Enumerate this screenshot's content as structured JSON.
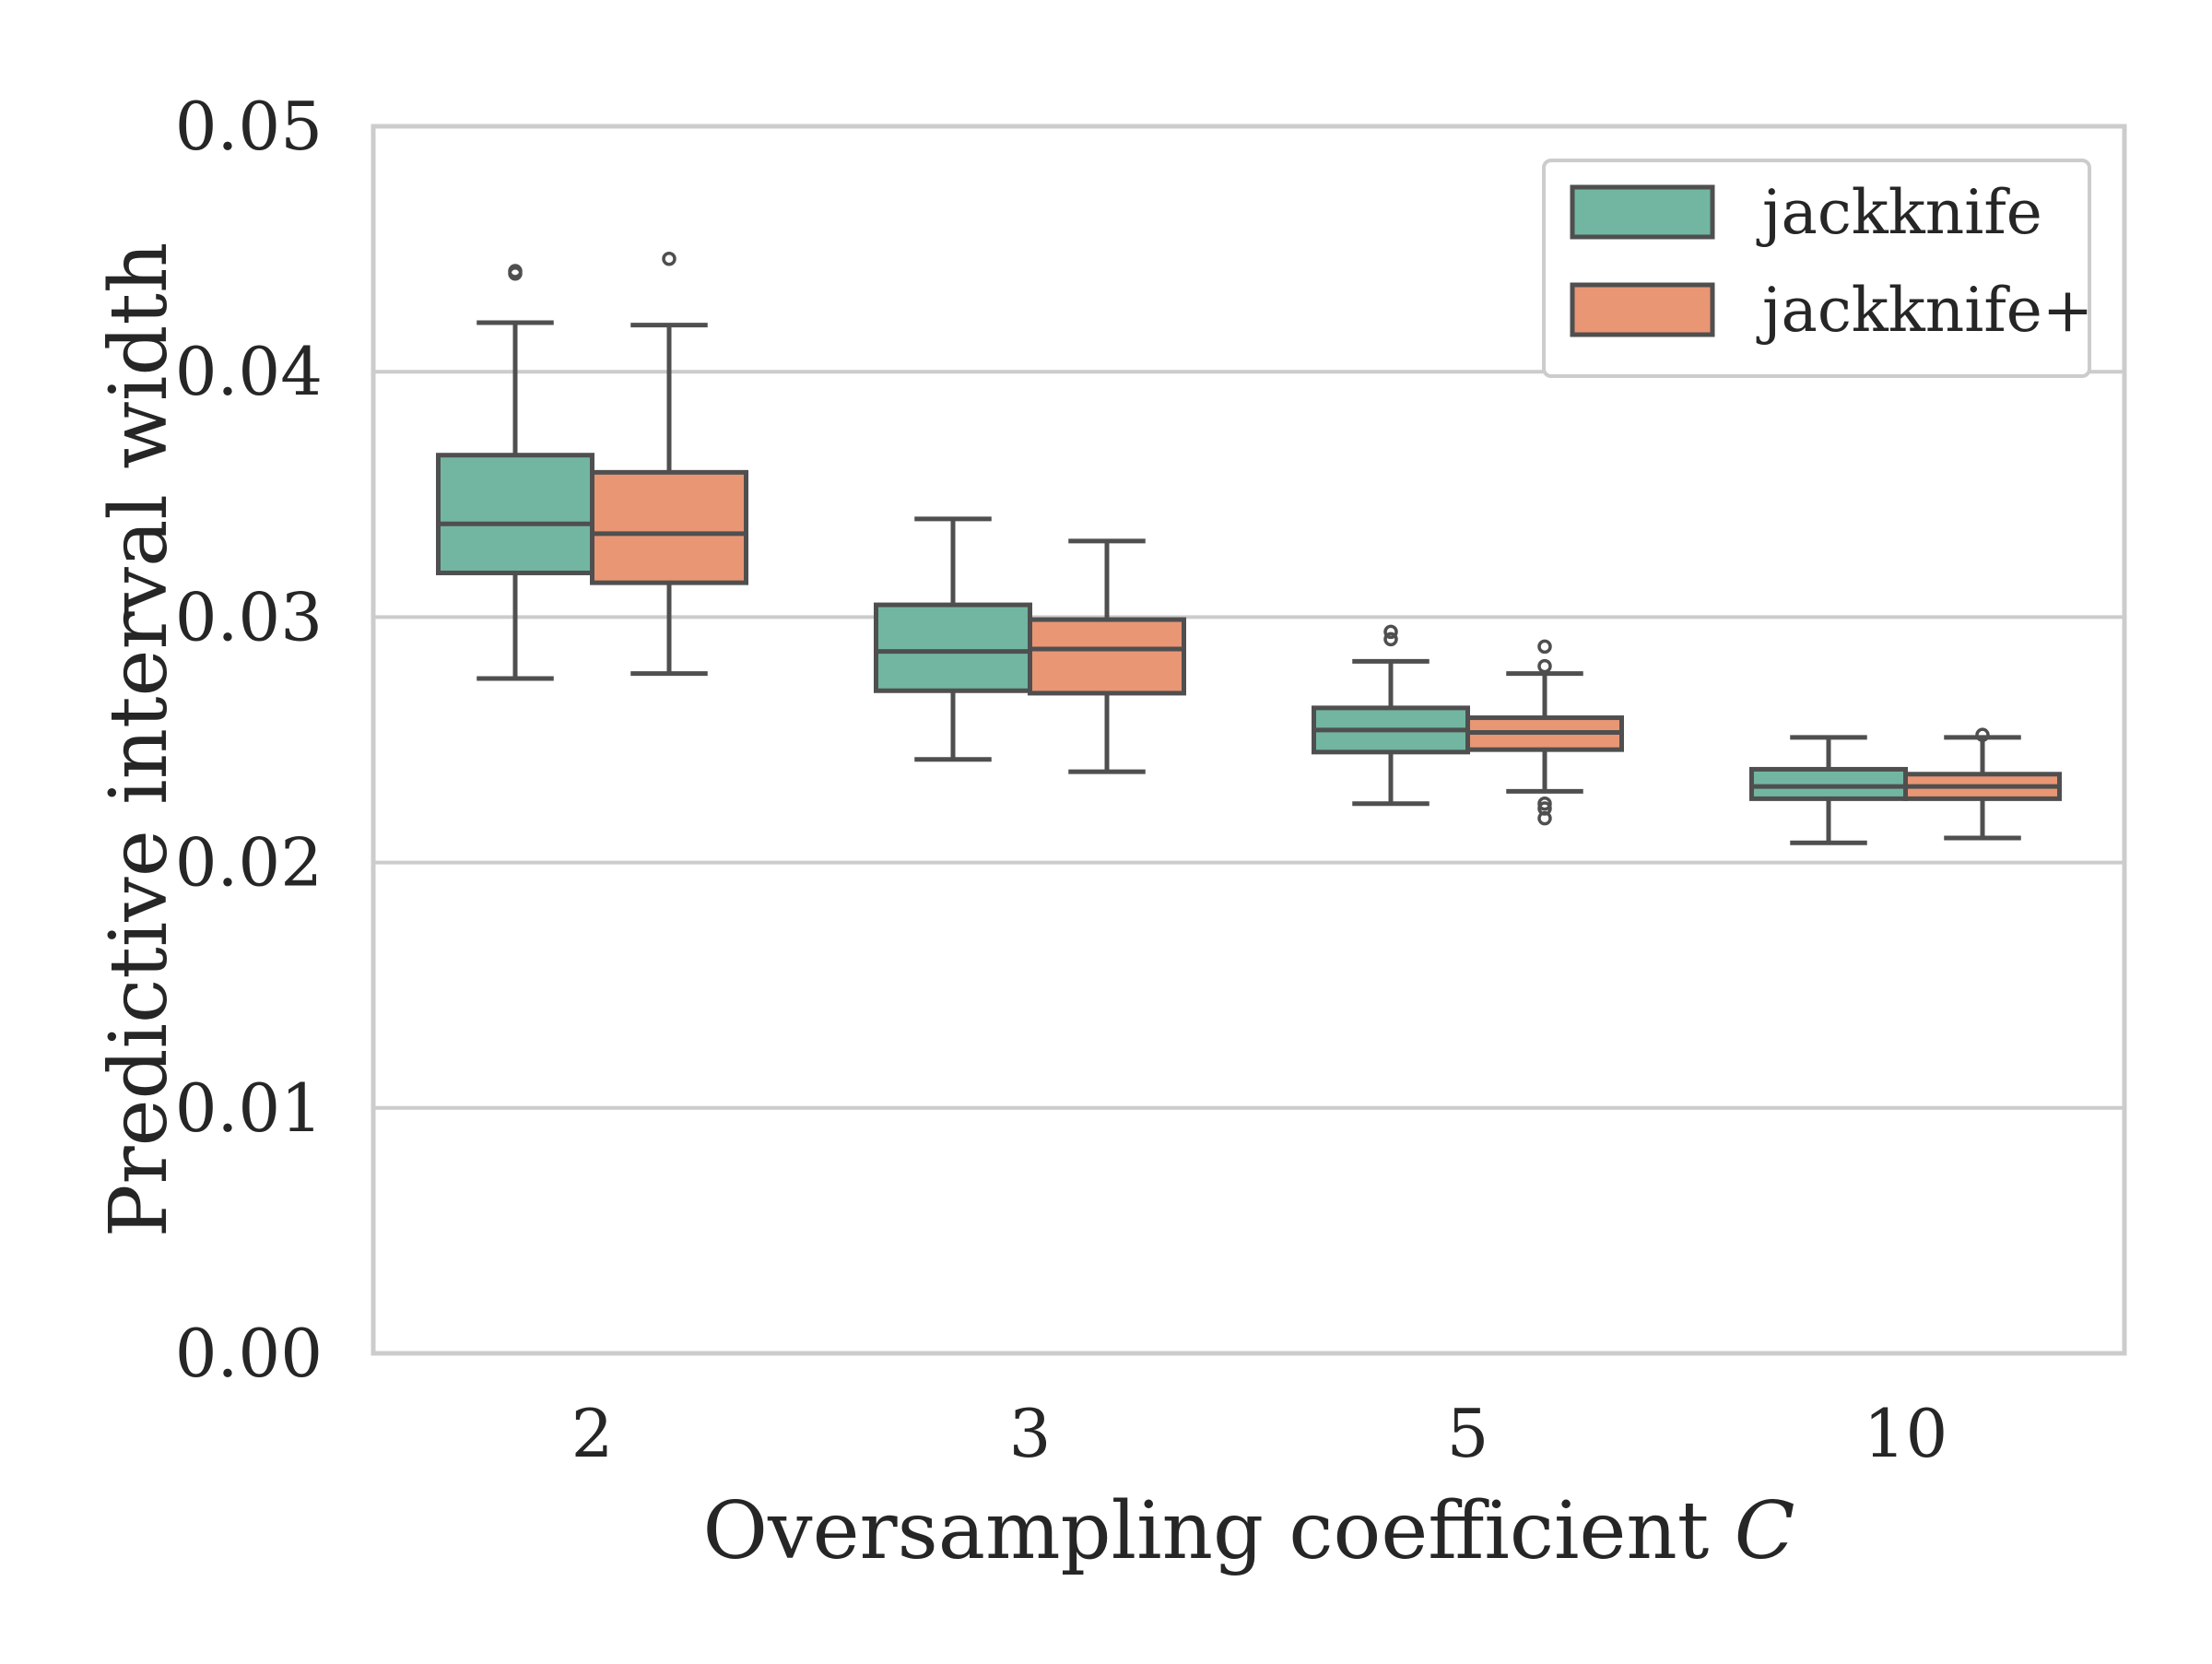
{
  "chart_data": {
    "type": "box",
    "title": "",
    "xlabel": "Oversampling coefficient",
    "xlabel_symbol": "C",
    "ylabel": "Predictive interval width",
    "ylim": [
      0.0,
      0.05
    ],
    "yticks": [
      "0.00",
      "0.01",
      "0.02",
      "0.03",
      "0.04",
      "0.05"
    ],
    "grid": "horizontal",
    "legend_position": "top-right",
    "categories": [
      "2",
      "3",
      "5",
      "10"
    ],
    "series": [
      {
        "name": "jackknife",
        "color": "#72b6a1",
        "boxes": [
          {
            "whisker_low": 0.0275,
            "q1": 0.0318,
            "median": 0.0338,
            "q3": 0.0366,
            "whisker_high": 0.042,
            "outliers": [
              0.0441,
              0.044
            ]
          },
          {
            "whisker_low": 0.0242,
            "q1": 0.027,
            "median": 0.0286,
            "q3": 0.0305,
            "whisker_high": 0.034,
            "outliers": []
          },
          {
            "whisker_low": 0.0224,
            "q1": 0.0245,
            "median": 0.0254,
            "q3": 0.0263,
            "whisker_high": 0.0282,
            "outliers": [
              0.0291,
              0.0294
            ]
          },
          {
            "whisker_low": 0.0208,
            "q1": 0.0226,
            "median": 0.0231,
            "q3": 0.0238,
            "whisker_high": 0.0251,
            "outliers": []
          }
        ]
      },
      {
        "name": "jackknife+",
        "color": "#e99675",
        "boxes": [
          {
            "whisker_low": 0.0277,
            "q1": 0.0314,
            "median": 0.0334,
            "q3": 0.0359,
            "whisker_high": 0.0419,
            "outliers": [
              0.0446
            ]
          },
          {
            "whisker_low": 0.0237,
            "q1": 0.0269,
            "median": 0.0287,
            "q3": 0.0299,
            "whisker_high": 0.0331,
            "outliers": []
          },
          {
            "whisker_low": 0.0229,
            "q1": 0.0246,
            "median": 0.0253,
            "q3": 0.0259,
            "whisker_high": 0.0277,
            "outliers": [
              0.0288,
              0.028,
              0.0224,
              0.0222,
              0.0218
            ]
          },
          {
            "whisker_low": 0.021,
            "q1": 0.0226,
            "median": 0.0231,
            "q3": 0.0236,
            "whisker_high": 0.0251,
            "outliers": [
              0.0252
            ]
          }
        ]
      }
    ]
  }
}
